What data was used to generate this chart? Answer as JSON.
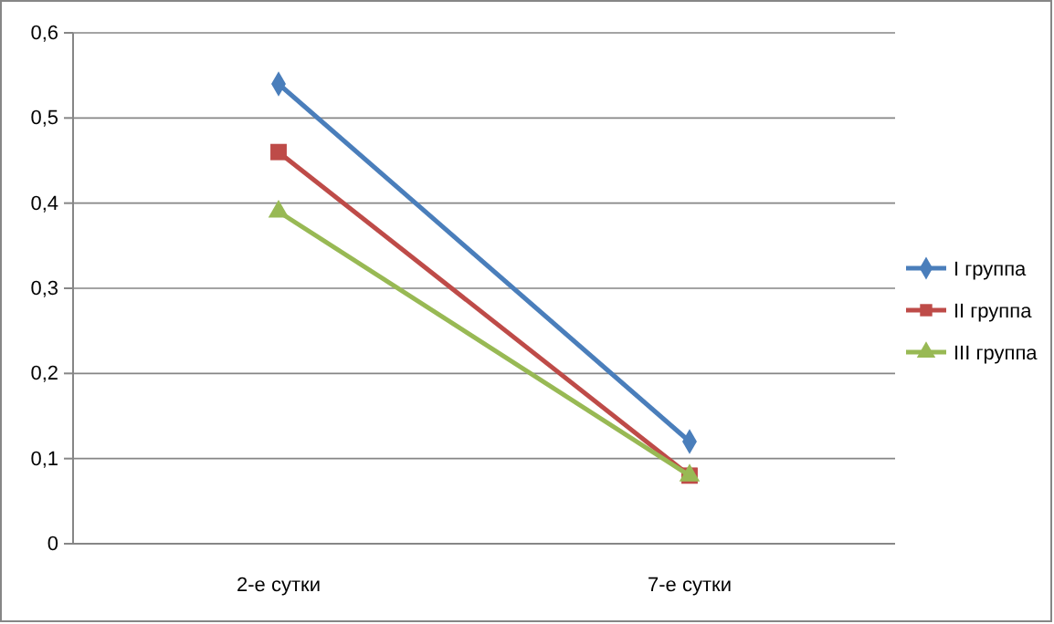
{
  "chart_data": {
    "type": "line",
    "categories": [
      "2-е сутки",
      "7-е сутки"
    ],
    "series": [
      {
        "name": "I группа",
        "color": "#4a7ebb",
        "marker": "diamond",
        "values": [
          0.54,
          0.12
        ]
      },
      {
        "name": "II группа",
        "color": "#be4b48",
        "marker": "square",
        "values": [
          0.46,
          0.08
        ]
      },
      {
        "name": "III группа",
        "color": "#98b954",
        "marker": "triangle",
        "values": [
          0.39,
          0.08
        ]
      }
    ],
    "ylim": [
      0,
      0.6
    ],
    "yticks": [
      0,
      {
        "value": 0.1,
        "label": "0,1"
      },
      {
        "value": 0.2,
        "label": "0,2"
      },
      {
        "value": 0.3,
        "label": "0,3"
      },
      {
        "value": 0.4,
        "label": "0,4"
      },
      {
        "value": 0.5,
        "label": "0,5"
      },
      {
        "value": 0.6,
        "label": "0,6"
      }
    ],
    "grid": "y",
    "legend": "right",
    "line_style": "solid"
  }
}
